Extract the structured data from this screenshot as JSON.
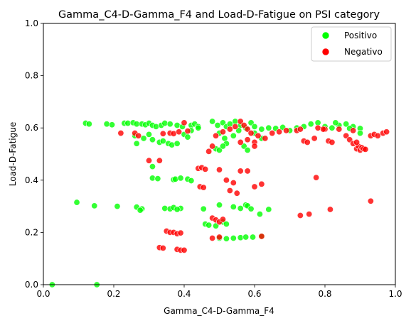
{
  "chart_data": {
    "type": "scatter",
    "title": "Gamma_C4-D-Gamma_F4 and Load-D-Fatigue on PSI category",
    "xlabel": "Gamma_C4-D-Gamma_F4",
    "ylabel": "Load-D-Fatigue",
    "xlim": [
      0,
      1
    ],
    "ylim": [
      0,
      1
    ],
    "xticks": [
      "0.0",
      "0.2",
      "0.4",
      "0.6",
      "0.8",
      "1.0"
    ],
    "yticks": [
      "0.0",
      "0.2",
      "0.4",
      "0.6",
      "0.8",
      "1.0"
    ],
    "grid": false,
    "legend_position": "top-right",
    "series": [
      {
        "name": "Positivo",
        "color": "#00ff00",
        "points": [
          [
            0.025,
            0.0
          ],
          [
            0.152,
            0.0
          ],
          [
            0.095,
            0.315
          ],
          [
            0.145,
            0.302
          ],
          [
            0.21,
            0.3
          ],
          [
            0.265,
            0.297
          ],
          [
            0.28,
            0.29
          ],
          [
            0.275,
            0.285
          ],
          [
            0.345,
            0.292
          ],
          [
            0.36,
            0.29
          ],
          [
            0.37,
            0.295
          ],
          [
            0.39,
            0.292
          ],
          [
            0.38,
            0.288
          ],
          [
            0.455,
            0.29
          ],
          [
            0.46,
            0.232
          ],
          [
            0.47,
            0.228
          ],
          [
            0.49,
            0.225
          ],
          [
            0.5,
            0.305
          ],
          [
            0.51,
            0.24
          ],
          [
            0.52,
            0.232
          ],
          [
            0.54,
            0.298
          ],
          [
            0.56,
            0.292
          ],
          [
            0.575,
            0.305
          ],
          [
            0.58,
            0.302
          ],
          [
            0.59,
            0.29
          ],
          [
            0.615,
            0.27
          ],
          [
            0.64,
            0.288
          ],
          [
            0.5,
            0.178
          ],
          [
            0.52,
            0.176
          ],
          [
            0.54,
            0.178
          ],
          [
            0.56,
            0.18
          ],
          [
            0.575,
            0.182
          ],
          [
            0.595,
            0.182
          ],
          [
            0.62,
            0.185
          ],
          [
            0.31,
            0.408
          ],
          [
            0.325,
            0.406
          ],
          [
            0.37,
            0.402
          ],
          [
            0.375,
            0.404
          ],
          [
            0.39,
            0.408
          ],
          [
            0.41,
            0.404
          ],
          [
            0.42,
            0.398
          ],
          [
            0.31,
            0.452
          ],
          [
            0.12,
            0.618
          ],
          [
            0.13,
            0.615
          ],
          [
            0.18,
            0.615
          ],
          [
            0.195,
            0.612
          ],
          [
            0.23,
            0.618
          ],
          [
            0.24,
            0.618
          ],
          [
            0.255,
            0.62
          ],
          [
            0.265,
            0.615
          ],
          [
            0.28,
            0.615
          ],
          [
            0.29,
            0.612
          ],
          [
            0.3,
            0.618
          ],
          [
            0.31,
            0.61
          ],
          [
            0.32,
            0.605
          ],
          [
            0.335,
            0.61
          ],
          [
            0.345,
            0.618
          ],
          [
            0.36,
            0.615
          ],
          [
            0.38,
            0.61
          ],
          [
            0.395,
            0.605
          ],
          [
            0.42,
            0.61
          ],
          [
            0.43,
            0.615
          ],
          [
            0.44,
            0.605
          ],
          [
            0.26,
            0.57
          ],
          [
            0.265,
            0.54
          ],
          [
            0.285,
            0.56
          ],
          [
            0.3,
            0.575
          ],
          [
            0.31,
            0.555
          ],
          [
            0.33,
            0.545
          ],
          [
            0.34,
            0.55
          ],
          [
            0.355,
            0.54
          ],
          [
            0.365,
            0.535
          ],
          [
            0.38,
            0.54
          ],
          [
            0.4,
            0.575
          ],
          [
            0.41,
            0.565
          ],
          [
            0.42,
            0.59
          ],
          [
            0.44,
            0.6
          ],
          [
            0.48,
            0.625
          ],
          [
            0.495,
            0.61
          ],
          [
            0.51,
            0.62
          ],
          [
            0.52,
            0.605
          ],
          [
            0.53,
            0.615
          ],
          [
            0.545,
            0.625
          ],
          [
            0.56,
            0.61
          ],
          [
            0.575,
            0.6
          ],
          [
            0.59,
            0.62
          ],
          [
            0.6,
            0.605
          ],
          [
            0.62,
            0.595
          ],
          [
            0.64,
            0.6
          ],
          [
            0.66,
            0.598
          ],
          [
            0.68,
            0.602
          ],
          [
            0.5,
            0.58
          ],
          [
            0.515,
            0.56
          ],
          [
            0.52,
            0.54
          ],
          [
            0.54,
            0.57
          ],
          [
            0.555,
            0.59
          ],
          [
            0.57,
            0.53
          ],
          [
            0.58,
            0.515
          ],
          [
            0.6,
            0.58
          ],
          [
            0.62,
            0.56
          ],
          [
            0.49,
            0.52
          ],
          [
            0.5,
            0.515
          ],
          [
            0.51,
            0.53
          ],
          [
            0.7,
            0.59
          ],
          [
            0.72,
            0.6
          ],
          [
            0.74,
            0.605
          ],
          [
            0.76,
            0.615
          ],
          [
            0.78,
            0.62
          ],
          [
            0.8,
            0.605
          ],
          [
            0.82,
            0.6
          ],
          [
            0.84,
            0.61
          ],
          [
            0.86,
            0.615
          ],
          [
            0.88,
            0.605
          ],
          [
            0.9,
            0.598
          ],
          [
            0.83,
            0.62
          ],
          [
            0.87,
            0.598
          ],
          [
            0.9,
            0.58
          ]
        ]
      },
      {
        "name": "Negativo",
        "color": "#ff0000",
        "points": [
          [
            0.22,
            0.58
          ],
          [
            0.26,
            0.58
          ],
          [
            0.27,
            0.57
          ],
          [
            0.34,
            0.578
          ],
          [
            0.36,
            0.58
          ],
          [
            0.37,
            0.578
          ],
          [
            0.385,
            0.585
          ],
          [
            0.4,
            0.62
          ],
          [
            0.41,
            0.588
          ],
          [
            0.3,
            0.475
          ],
          [
            0.33,
            0.475
          ],
          [
            0.44,
            0.445
          ],
          [
            0.45,
            0.448
          ],
          [
            0.46,
            0.442
          ],
          [
            0.445,
            0.375
          ],
          [
            0.455,
            0.372
          ],
          [
            0.5,
            0.44
          ],
          [
            0.52,
            0.4
          ],
          [
            0.54,
            0.39
          ],
          [
            0.56,
            0.435
          ],
          [
            0.58,
            0.435
          ],
          [
            0.6,
            0.375
          ],
          [
            0.62,
            0.385
          ],
          [
            0.53,
            0.36
          ],
          [
            0.55,
            0.35
          ],
          [
            0.35,
            0.205
          ],
          [
            0.36,
            0.2
          ],
          [
            0.37,
            0.2
          ],
          [
            0.38,
            0.195
          ],
          [
            0.39,
            0.198
          ],
          [
            0.33,
            0.142
          ],
          [
            0.34,
            0.14
          ],
          [
            0.38,
            0.135
          ],
          [
            0.39,
            0.132
          ],
          [
            0.4,
            0.132
          ],
          [
            0.48,
            0.255
          ],
          [
            0.49,
            0.248
          ],
          [
            0.5,
            0.24
          ],
          [
            0.51,
            0.25
          ],
          [
            0.48,
            0.178
          ],
          [
            0.5,
            0.182
          ],
          [
            0.62,
            0.185
          ],
          [
            0.47,
            0.51
          ],
          [
            0.48,
            0.53
          ],
          [
            0.49,
            0.57
          ],
          [
            0.51,
            0.585
          ],
          [
            0.53,
            0.595
          ],
          [
            0.545,
            0.605
          ],
          [
            0.56,
            0.625
          ],
          [
            0.57,
            0.61
          ],
          [
            0.58,
            0.595
          ],
          [
            0.59,
            0.58
          ],
          [
            0.6,
            0.545
          ],
          [
            0.61,
            0.57
          ],
          [
            0.63,
            0.56
          ],
          [
            0.65,
            0.58
          ],
          [
            0.67,
            0.585
          ],
          [
            0.69,
            0.59
          ],
          [
            0.56,
            0.545
          ],
          [
            0.58,
            0.555
          ],
          [
            0.6,
            0.53
          ],
          [
            0.72,
            0.59
          ],
          [
            0.73,
            0.595
          ],
          [
            0.74,
            0.55
          ],
          [
            0.75,
            0.545
          ],
          [
            0.77,
            0.56
          ],
          [
            0.78,
            0.6
          ],
          [
            0.8,
            0.595
          ],
          [
            0.81,
            0.55
          ],
          [
            0.82,
            0.545
          ],
          [
            0.84,
            0.595
          ],
          [
            0.86,
            0.57
          ],
          [
            0.87,
            0.555
          ],
          [
            0.88,
            0.59
          ],
          [
            0.89,
            0.52
          ],
          [
            0.895,
            0.53
          ],
          [
            0.9,
            0.515
          ],
          [
            0.905,
            0.525
          ],
          [
            0.91,
            0.52
          ],
          [
            0.915,
            0.518
          ],
          [
            0.93,
            0.57
          ],
          [
            0.94,
            0.575
          ],
          [
            0.95,
            0.57
          ],
          [
            0.965,
            0.58
          ],
          [
            0.975,
            0.585
          ],
          [
            0.88,
            0.54
          ],
          [
            0.89,
            0.545
          ],
          [
            0.73,
            0.265
          ],
          [
            0.755,
            0.27
          ],
          [
            0.815,
            0.288
          ],
          [
            0.93,
            0.32
          ],
          [
            0.775,
            0.41
          ],
          [
            0.795,
            0.595
          ]
        ]
      }
    ]
  }
}
